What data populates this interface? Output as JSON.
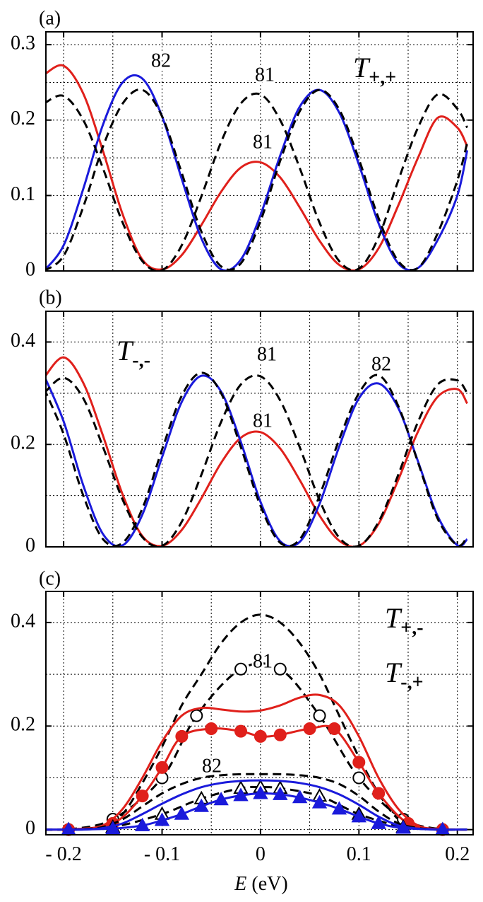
{
  "chart_data": [
    {
      "type": "line",
      "panel_label": "(a)",
      "xlim": [
        -0.218,
        0.216
      ],
      "ylim": [
        0,
        0.317
      ],
      "xticks": [
        -0.2,
        -0.1,
        0,
        0.1,
        0.2
      ],
      "xminor": [
        -0.15,
        -0.05,
        0.05,
        0.15
      ],
      "yticks": [
        0,
        0.1,
        0.2,
        0.3
      ],
      "yminor": [
        0.05,
        0.15,
        0.25
      ],
      "grid": true,
      "x": [
        -0.22,
        -0.2,
        -0.18,
        -0.16,
        -0.14,
        -0.12,
        -0.1,
        -0.08,
        -0.06,
        -0.04,
        -0.02,
        0,
        0.02,
        0.04,
        0.06,
        0.08,
        0.1,
        0.12,
        0.14,
        0.16,
        0.18,
        0.2,
        0.21
      ],
      "series": [
        {
          "color": "#e0201b",
          "dash": false,
          "values": [
            0.26,
            0.272,
            0.235,
            0.159,
            0.075,
            0.015,
            0.002,
            0.021,
            0.061,
            0.105,
            0.137,
            0.144,
            0.124,
            0.084,
            0.04,
            0.008,
            0.002,
            0.03,
            0.087,
            0.15,
            0.203,
            0.19,
            0.165
          ]
        },
        {
          "color": "#1a1adb",
          "dash": false,
          "values": [
            0.0,
            0.034,
            0.109,
            0.194,
            0.25,
            0.255,
            0.205,
            0.122,
            0.043,
            0.002,
            0.015,
            0.074,
            0.153,
            0.218,
            0.24,
            0.21,
            0.141,
            0.063,
            0.01,
            0.004,
            0.041,
            0.1,
            0.16
          ]
        },
        {
          "color": "#000000",
          "dash": true,
          "values": [
            0.0,
            0.02,
            0.085,
            0.165,
            0.222,
            0.24,
            0.205,
            0.13,
            0.052,
            0.006,
            0.01,
            0.066,
            0.146,
            0.212,
            0.24,
            0.214,
            0.148,
            0.07,
            0.013,
            0.004,
            0.05,
            0.12,
            0.17
          ]
        },
        {
          "color": "#000000",
          "dash": true,
          "values": [
            0.222,
            0.232,
            0.2,
            0.136,
            0.064,
            0.013,
            0.001,
            0.034,
            0.099,
            0.171,
            0.222,
            0.234,
            0.2,
            0.136,
            0.064,
            0.013,
            0.003,
            0.045,
            0.12,
            0.19,
            0.234,
            0.215,
            0.19
          ]
        }
      ],
      "annotations": [
        "82",
        "81",
        "81",
        {
          "text": "T",
          "sub": "+,+"
        }
      ]
    },
    {
      "type": "line",
      "panel_label": "(b)",
      "xlim": [
        -0.218,
        0.216
      ],
      "ylim": [
        0,
        0.46
      ],
      "xticks": [
        -0.2,
        -0.1,
        0,
        0.1,
        0.2
      ],
      "xminor": [
        -0.15,
        -0.05,
        0.05,
        0.15
      ],
      "yticks": [
        0,
        0.2,
        0.4
      ],
      "yminor": [
        0.1,
        0.3
      ],
      "grid": true,
      "x": [
        -0.22,
        -0.2,
        -0.18,
        -0.16,
        -0.14,
        -0.12,
        -0.1,
        -0.08,
        -0.06,
        -0.04,
        -0.02,
        0,
        0.02,
        0.04,
        0.06,
        0.08,
        0.1,
        0.12,
        0.14,
        0.16,
        0.18,
        0.2,
        0.21
      ],
      "series": [
        {
          "color": "#e0201b",
          "dash": false,
          "values": [
            0.33,
            0.37,
            0.32,
            0.217,
            0.102,
            0.021,
            0.002,
            0.033,
            0.095,
            0.164,
            0.213,
            0.224,
            0.192,
            0.13,
            0.061,
            0.012,
            0.002,
            0.045,
            0.131,
            0.225,
            0.293,
            0.308,
            0.28
          ]
        },
        {
          "color": "#1a1adb",
          "dash": false,
          "values": [
            0.335,
            0.245,
            0.12,
            0.025,
            0.003,
            0.063,
            0.175,
            0.283,
            0.334,
            0.303,
            0.205,
            0.088,
            0.011,
            0.01,
            0.084,
            0.196,
            0.29,
            0.319,
            0.271,
            0.167,
            0.06,
            0.003,
            0.015
          ]
        },
        {
          "color": "#000000",
          "dash": true,
          "values": [
            0.31,
            0.22,
            0.1,
            0.015,
            0.008,
            0.075,
            0.19,
            0.295,
            0.34,
            0.3,
            0.195,
            0.08,
            0.008,
            0.015,
            0.1,
            0.21,
            0.3,
            0.335,
            0.275,
            0.165,
            0.055,
            0.003,
            0.02
          ]
        },
        {
          "color": "#000000",
          "dash": true,
          "values": [
            0.3,
            0.33,
            0.29,
            0.195,
            0.092,
            0.019,
            0.002,
            0.049,
            0.141,
            0.244,
            0.317,
            0.333,
            0.286,
            0.194,
            0.091,
            0.018,
            0.002,
            0.049,
            0.141,
            0.244,
            0.317,
            0.325,
            0.3
          ]
        }
      ],
      "annotations": [
        {
          "text": "T",
          "sub": "-,-"
        },
        "81",
        "81",
        "82"
      ]
    },
    {
      "type": "line",
      "panel_label": "(c)",
      "xlim": [
        -0.218,
        0.216
      ],
      "ylim": [
        -0.01,
        0.46
      ],
      "xticks": [
        {
          "value": -0.2,
          "label": "- 0.2"
        },
        {
          "value": -0.1,
          "label": "- 0.1"
        },
        0,
        0.1,
        0.2
      ],
      "xminor": [
        -0.15,
        -0.05,
        0.05,
        0.15
      ],
      "yticks": [
        0,
        0.2,
        0.4
      ],
      "yminor": [
        0.1,
        0.3
      ],
      "grid": true,
      "xlabel": {
        "var": "E",
        "unit": "(eV)"
      },
      "x": [
        -0.22,
        -0.2,
        -0.18,
        -0.16,
        -0.14,
        -0.12,
        -0.1,
        -0.08,
        -0.06,
        -0.04,
        -0.02,
        0,
        0.02,
        0.04,
        0.06,
        0.08,
        0.1,
        0.12,
        0.14,
        0.16,
        0.18,
        0.2,
        0.21
      ],
      "series": [
        {
          "color": "#000000",
          "dash": true,
          "values": [
            0,
            0,
            0.001,
            0.006,
            0.03,
            0.09,
            0.16,
            0.24,
            0.3,
            0.36,
            0.4,
            0.415,
            0.4,
            0.36,
            0.3,
            0.22,
            0.14,
            0.07,
            0.02,
            0.003,
            0,
            0,
            0
          ]
        },
        {
          "color": "#000000",
          "dash": true,
          "marker": "circle-open",
          "x": [
            -0.195,
            -0.15,
            -0.1,
            -0.065,
            -0.02,
            0.02,
            0.06,
            0.1,
            0.145,
            0.185
          ],
          "values": [
            0,
            0.02,
            0.1,
            0.22,
            0.31,
            0.31,
            0.22,
            0.1,
            0.02,
            0
          ]
        },
        {
          "color": "#e0201b",
          "dash": false,
          "values": [
            0,
            0,
            0.001,
            0.008,
            0.04,
            0.1,
            0.17,
            0.22,
            0.235,
            0.232,
            0.228,
            0.23,
            0.24,
            0.255,
            0.26,
            0.24,
            0.18,
            0.1,
            0.04,
            0.008,
            0.001,
            0,
            0
          ]
        },
        {
          "color": "#e0201b",
          "dash": false,
          "marker": "circle",
          "x": [
            -0.195,
            -0.15,
            -0.12,
            -0.1,
            -0.08,
            -0.05,
            -0.02,
            0,
            0.02,
            0.05,
            0.075,
            0.1,
            0.12,
            0.15,
            0.185
          ],
          "values": [
            0,
            0.012,
            0.065,
            0.12,
            0.18,
            0.195,
            0.19,
            0.18,
            0.183,
            0.195,
            0.195,
            0.13,
            0.07,
            0.012,
            0
          ]
        },
        {
          "color": "#000000",
          "dash": true,
          "values": [
            0,
            0,
            0.001,
            0.005,
            0.02,
            0.045,
            0.07,
            0.088,
            0.1,
            0.105,
            0.107,
            0.107,
            0.107,
            0.105,
            0.1,
            0.088,
            0.065,
            0.035,
            0.012,
            0.003,
            0,
            0,
            0
          ]
        },
        {
          "color": "#000000",
          "dash": true,
          "marker": "triangle-open",
          "x": [
            -0.195,
            -0.15,
            -0.1,
            -0.06,
            -0.02,
            0,
            0.02,
            0.06,
            0.1,
            0.145,
            0.185
          ],
          "values": [
            0,
            0.005,
            0.03,
            0.06,
            0.08,
            0.082,
            0.08,
            0.065,
            0.03,
            0.005,
            0
          ]
        },
        {
          "color": "#1a1adb",
          "dash": false,
          "values": [
            0,
            0,
            0,
            0.003,
            0.012,
            0.03,
            0.05,
            0.068,
            0.082,
            0.09,
            0.094,
            0.095,
            0.094,
            0.09,
            0.082,
            0.068,
            0.048,
            0.025,
            0.008,
            0.002,
            0,
            0,
            0
          ]
        },
        {
          "color": "#1a1adb",
          "dash": false,
          "marker": "triangle",
          "x": [
            -0.195,
            -0.15,
            -0.12,
            -0.1,
            -0.08,
            -0.06,
            -0.04,
            -0.02,
            0,
            0.02,
            0.04,
            0.06,
            0.08,
            0.1,
            0.12,
            0.145,
            0.185
          ],
          "values": [
            0,
            0.002,
            0.008,
            0.018,
            0.03,
            0.045,
            0.058,
            0.066,
            0.07,
            0.068,
            0.062,
            0.052,
            0.04,
            0.025,
            0.012,
            0.003,
            0
          ]
        }
      ],
      "annotations": [
        "81",
        "82",
        {
          "text": "T",
          "sub": "+,-"
        },
        {
          "text": "T",
          "sub": "-,+"
        }
      ]
    }
  ]
}
